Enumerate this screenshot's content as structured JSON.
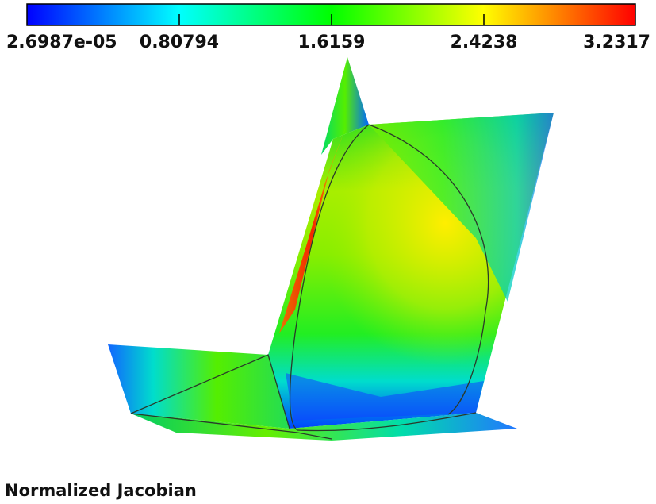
{
  "colorbar": {
    "stops": [
      "#0000ff",
      "#00ffff",
      "#00ff00",
      "#ffff00",
      "#ff0000"
    ],
    "ticks": [
      "2.6987e-05",
      "0.80794",
      "1.6159",
      "2.4238",
      "3.2317"
    ]
  },
  "field": {
    "title": "Normalized Jacobian"
  }
}
